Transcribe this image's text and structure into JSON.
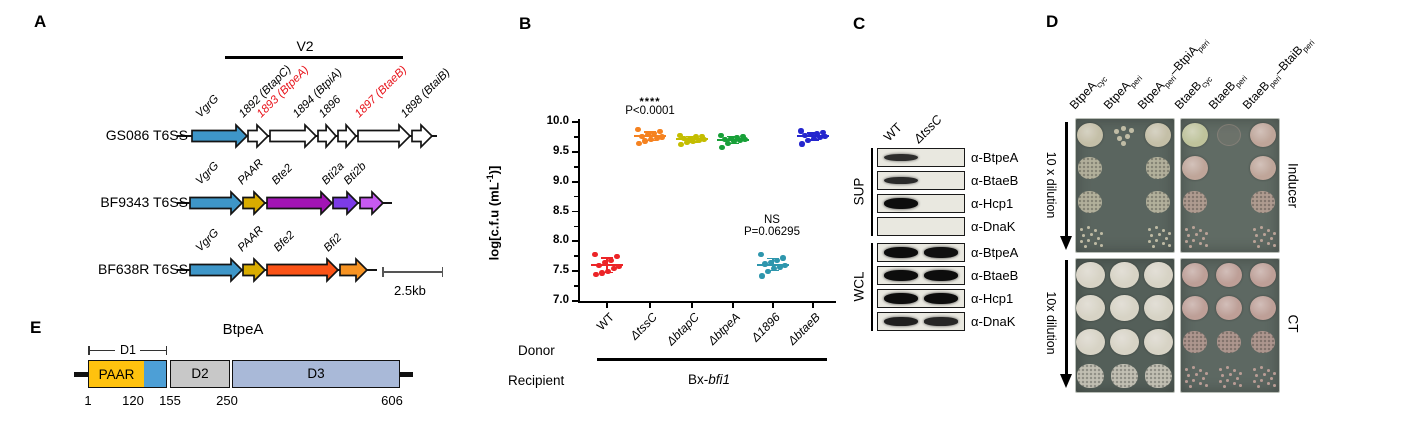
{
  "panelA": {
    "label": "A",
    "region_label": "V2",
    "scale_label": "2.5kb",
    "highlight_color": "#E8131B",
    "rows": [
      {
        "name": "GS086 T6SS",
        "genes": [
          {
            "label": "VgrG",
            "fill": "#3E96C8",
            "highlight": false
          },
          {
            "label": "1892 (BtapC)",
            "fill": "#FFFFFF",
            "highlight": false
          },
          {
            "label": "1893 (BtpeA)",
            "fill": "#FFFFFF",
            "highlight": true
          },
          {
            "label": "1894 (BtpiA)",
            "fill": "#FFFFFF",
            "highlight": false
          },
          {
            "label": "1896",
            "fill": "#FFFFFF",
            "highlight": false
          },
          {
            "label": "1897 (BtaeB)",
            "fill": "#FFFFFF",
            "highlight": true
          },
          {
            "label": "1898 (BtaiB)",
            "fill": "#FFFFFF",
            "highlight": false
          }
        ]
      },
      {
        "name": "BF9343 T6SS",
        "genes": [
          {
            "label": "VgrG",
            "fill": "#3E96C8",
            "highlight": false
          },
          {
            "label": "PAAR",
            "fill": "#D9AC00",
            "highlight": false
          },
          {
            "label": "Bte2",
            "fill": "#A214B5",
            "highlight": false
          },
          {
            "label": "Bti2a",
            "fill": "#7C3BE8",
            "highlight": false
          },
          {
            "label": "Bti2b",
            "fill": "#C75AF0",
            "highlight": false
          }
        ]
      },
      {
        "name": "BF638R T6SS",
        "genes": [
          {
            "label": "VgrG",
            "fill": "#3E96C8",
            "highlight": false
          },
          {
            "label": "PAAR",
            "fill": "#D9AC00",
            "highlight": false
          },
          {
            "label": "Bfe2",
            "fill": "#FB5317",
            "highlight": false
          },
          {
            "label": "Bfi2",
            "fill": "#F79322",
            "highlight": false
          }
        ]
      }
    ]
  },
  "chart_data": {
    "type": "scatter",
    "title": "",
    "ylabel": "log[c.f.u (mL-1)]",
    "xlabel": "Donor",
    "ylim": [
      7.0,
      10.0
    ],
    "yticks": [
      7.0,
      7.5,
      8.0,
      8.5,
      9.0,
      9.5,
      10.0
    ],
    "grid": false,
    "categories": [
      "WT",
      "ΔtssC",
      "ΔbtapC",
      "ΔbtpeA",
      "Δ1896",
      "ΔbtaeB"
    ],
    "categories_italic": [
      false,
      true,
      true,
      true,
      true,
      true
    ],
    "recipient": "Bx-bfi1",
    "series": [
      {
        "name": "WT",
        "color": "#EC2427",
        "mean": 7.6,
        "sd": 0.12,
        "values": [
          7.44,
          7.47,
          7.5,
          7.55,
          7.58,
          7.6,
          7.64,
          7.68,
          7.74,
          7.78
        ]
      },
      {
        "name": "ΔtssC",
        "color": "#F58220",
        "mean": 9.76,
        "sd": 0.07,
        "values": [
          9.64,
          9.68,
          9.7,
          9.72,
          9.75,
          9.76,
          9.79,
          9.81,
          9.84,
          9.87
        ]
      },
      {
        "name": "ΔbtapC",
        "color": "#C4BD00",
        "mean": 9.71,
        "sd": 0.05,
        "values": [
          9.62,
          9.65,
          9.67,
          9.69,
          9.7,
          9.72,
          9.73,
          9.75,
          9.76,
          9.78
        ]
      },
      {
        "name": "ΔbtpeA",
        "color": "#18A038",
        "mean": 9.7,
        "sd": 0.06,
        "values": [
          9.57,
          9.64,
          9.67,
          9.69,
          9.7,
          9.71,
          9.72,
          9.74,
          9.76,
          9.78
        ]
      },
      {
        "name": "Δ1896",
        "color": "#2E96AD",
        "mean": 7.61,
        "sd": 0.1,
        "values": [
          7.42,
          7.5,
          7.54,
          7.57,
          7.6,
          7.62,
          7.65,
          7.68,
          7.72,
          7.78
        ]
      },
      {
        "name": "ΔbtaeB",
        "color": "#2526CE",
        "mean": 9.76,
        "sd": 0.06,
        "values": [
          9.63,
          9.69,
          9.72,
          9.74,
          9.76,
          9.77,
          9.79,
          9.8,
          9.82,
          9.85
        ]
      }
    ],
    "annotations": [
      {
        "at": "ΔtssC",
        "lines": [
          "****",
          "P<0.0001"
        ]
      },
      {
        "at": "Δ1896",
        "lines": [
          "NS",
          "P=0.06295"
        ]
      }
    ]
  },
  "panelB": {
    "label": "B",
    "ylabel_parts": [
      {
        "t": "log[c.f.u (mL"
      },
      {
        "t": "-1",
        "sup": true
      },
      {
        "t": ")]"
      }
    ],
    "sig_top_stars": "****",
    "sig_top_p": "P<0.0001",
    "sig_ns": "NS",
    "sig_ns_p": "P=0.06295",
    "donor_label": "Donor",
    "recipient_label": "Recipient",
    "recipient_parts": [
      {
        "t": "Bx-",
        "italic": false
      },
      {
        "t": "bfi1",
        "italic": true
      }
    ]
  },
  "panelC": {
    "label": "C",
    "lanes": [
      {
        "text": "WT",
        "italic": false
      },
      {
        "text": "ΔtssC",
        "italic": true
      }
    ],
    "groups": [
      {
        "name": "SUP",
        "rows": [
          {
            "label": "α-BtpeA",
            "bands": [
              0.5,
              0
            ]
          },
          {
            "label": "α-BtaeB",
            "bands": [
              0.55,
              0
            ]
          },
          {
            "label": "α-Hcp1",
            "bands": [
              1,
              0
            ]
          },
          {
            "label": "α-DnaK",
            "bands": [
              0,
              0
            ]
          }
        ]
      },
      {
        "name": "WCL",
        "rows": [
          {
            "label": "α-BtpeA",
            "bands": [
              1,
              0.95
            ]
          },
          {
            "label": "α-BtaeB",
            "bands": [
              1,
              1
            ]
          },
          {
            "label": "α-Hcp1",
            "bands": [
              1,
              1
            ]
          },
          {
            "label": "α-DnaK",
            "bands": [
              0.7,
              0.6
            ]
          }
        ]
      }
    ]
  },
  "panelD": {
    "label": "D",
    "col_labels": [
      [
        {
          "t": "BtpeA"
        },
        {
          "t": "cyc",
          "sub": true
        }
      ],
      [
        {
          "t": "BtpeA"
        },
        {
          "t": "peri",
          "sub": true
        }
      ],
      [
        {
          "t": "BtpeA"
        },
        {
          "t": "peri",
          "sub": true
        },
        {
          "t": "–BtpiA"
        },
        {
          "t": "peri",
          "sub": true
        }
      ],
      [
        {
          "t": "BtaeB"
        },
        {
          "t": "cyc",
          "sub": true
        }
      ],
      [
        {
          "t": "BtaeB"
        },
        {
          "t": "peri",
          "sub": true
        }
      ],
      [
        {
          "t": "BtaeB"
        },
        {
          "t": "peri",
          "sub": true
        },
        {
          "t": "–BtaiB"
        },
        {
          "t": "peri",
          "sub": true
        }
      ]
    ],
    "left_labels": [
      "10 x dilution",
      "10x dilution"
    ],
    "right_labels": [
      "Inducer",
      "CT"
    ],
    "plates": [
      {
        "bg": "#5a655f",
        "spot_color": "#c9c3ab",
        "grid": [
          [
            "solid",
            "dots",
            "solid"
          ],
          [
            "mottled",
            "none",
            "mottled"
          ],
          [
            "mottled",
            "none",
            "mottled"
          ],
          [
            "scattered",
            "none",
            "scattered"
          ]
        ]
      },
      {
        "bg": "#606b64",
        "spot_color": "#c3a89c",
        "overrides": {
          "0-0": "#c3c79e"
        },
        "grid": [
          [
            "solid",
            "faint",
            "solid"
          ],
          [
            "solid",
            "none",
            "solid"
          ],
          [
            "mottled",
            "none",
            "mottled"
          ],
          [
            "scattered",
            "none",
            "scattered"
          ]
        ]
      },
      {
        "bg": "#545f59",
        "spot_color": "#ddd8ca",
        "grid": [
          [
            "solid",
            "solid",
            "solid"
          ],
          [
            "solid",
            "solid",
            "solid"
          ],
          [
            "solid",
            "solid",
            "solid"
          ],
          [
            "mottled",
            "mottled",
            "mottled"
          ]
        ]
      },
      {
        "bg": "#5d6862",
        "spot_color": "#c2a29a",
        "grid": [
          [
            "solid",
            "solid",
            "solid"
          ],
          [
            "solid",
            "solid",
            "solid"
          ],
          [
            "mottled",
            "mottled",
            "mottled"
          ],
          [
            "scattered",
            "scattered",
            "scattered"
          ]
        ]
      }
    ]
  },
  "panelE": {
    "label": "E",
    "title": "BtpeA",
    "d1_label": "D1",
    "segments": [
      {
        "label": "PAAR",
        "fill": "#FFC20E"
      },
      {
        "label": "",
        "fill": "#4D9FD6"
      },
      {
        "label": "D2",
        "fill": "#C8C8C8"
      },
      {
        "label": "D3",
        "fill": "#A9B9D8"
      }
    ],
    "ticks": [
      "1",
      "120",
      "155",
      "250",
      "606"
    ]
  }
}
